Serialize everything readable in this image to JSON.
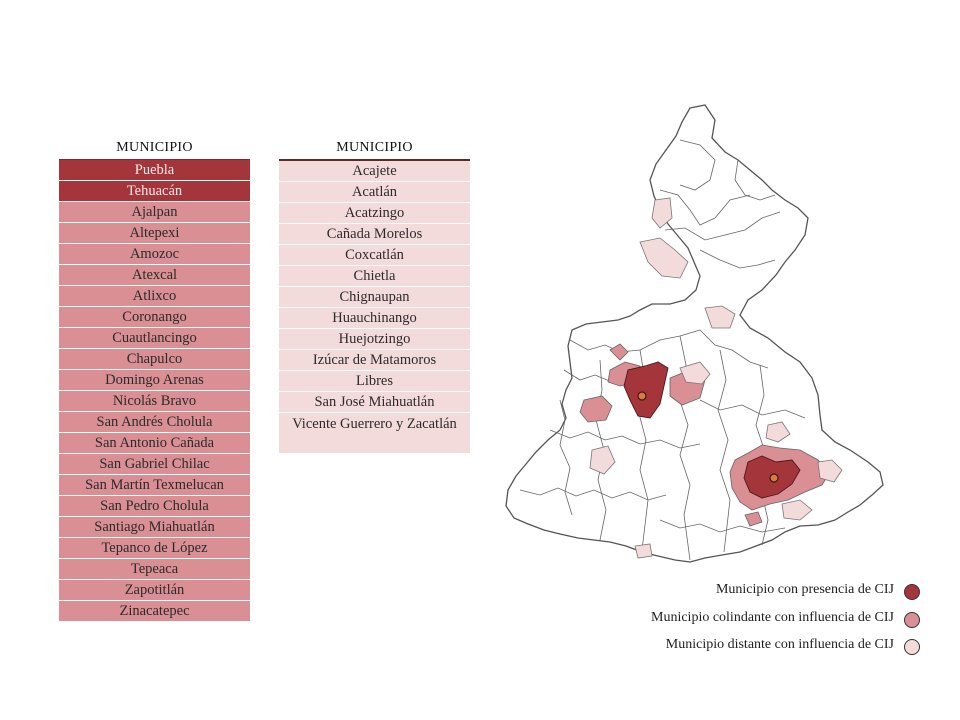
{
  "table1": {
    "header": "MUNICIPIO",
    "rows": [
      {
        "label": "Puebla",
        "level": "dark"
      },
      {
        "label": "Tehuacán",
        "level": "dark"
      },
      {
        "label": "Ajalpan",
        "level": "mid"
      },
      {
        "label": "Altepexi",
        "level": "mid"
      },
      {
        "label": "Amozoc",
        "level": "mid"
      },
      {
        "label": "Atexcal",
        "level": "mid"
      },
      {
        "label": "Atlixco",
        "level": "mid"
      },
      {
        "label": "Coronango",
        "level": "mid"
      },
      {
        "label": "Cuautlancingo",
        "level": "mid"
      },
      {
        "label": "Chapulco",
        "level": "mid"
      },
      {
        "label": "Domingo Arenas",
        "level": "mid"
      },
      {
        "label": "Nicolás Bravo",
        "level": "mid"
      },
      {
        "label": "San Andrés Cholula",
        "level": "mid"
      },
      {
        "label": "San Antonio Cañada",
        "level": "mid"
      },
      {
        "label": "San Gabriel Chilac",
        "level": "mid"
      },
      {
        "label": "San Martín Texmelucan",
        "level": "mid"
      },
      {
        "label": "San Pedro Cholula",
        "level": "mid"
      },
      {
        "label": "Santiago Miahuatlán",
        "level": "mid"
      },
      {
        "label": "Tepanco de López",
        "level": "mid"
      },
      {
        "label": "Tepeaca",
        "level": "mid"
      },
      {
        "label": "Zapotitlán",
        "level": "mid"
      },
      {
        "label": "Zinacatepec",
        "level": "mid"
      }
    ]
  },
  "table2": {
    "header": "MUNICIPIO",
    "rows": [
      {
        "label": "Acajete",
        "level": "light"
      },
      {
        "label": "Acatlán",
        "level": "light"
      },
      {
        "label": "Acatzingo",
        "level": "light"
      },
      {
        "label": "Cañada Morelos",
        "level": "light"
      },
      {
        "label": "Coxcatlán",
        "level": "light"
      },
      {
        "label": "Chietla",
        "level": "light"
      },
      {
        "label": "Chignaupan",
        "level": "light"
      },
      {
        "label": "Huauchinango",
        "level": "light"
      },
      {
        "label": "Huejotzingo",
        "level": "light"
      },
      {
        "label": "Izúcar de Matamoros",
        "level": "light"
      },
      {
        "label": "Libres",
        "level": "light"
      },
      {
        "label": "San José Miahuatlán",
        "level": "light"
      },
      {
        "label": "Vicente Guerrero y Zacatlán",
        "level": "light"
      }
    ]
  },
  "colors": {
    "presence": "#a4363b",
    "adjacent": "#d98f94",
    "distant": "#f3dadb",
    "border": "#555555"
  },
  "legend": [
    {
      "label": "Municipio con presencia de CIJ",
      "color": "#a4363b"
    },
    {
      "label": "Municipio colindante con influencia de CIJ",
      "color": "#d98f94"
    },
    {
      "label": "Municipio distante con influencia de CIJ",
      "color": "#f3dadb"
    }
  ]
}
